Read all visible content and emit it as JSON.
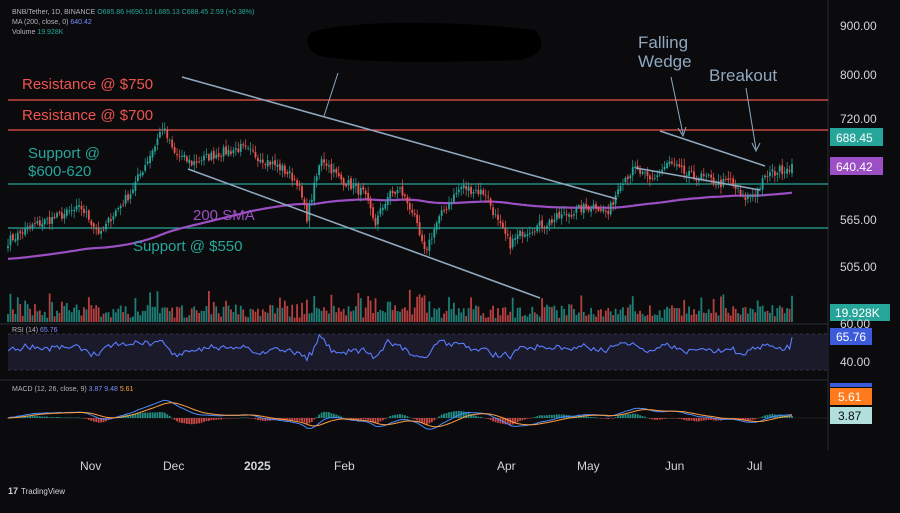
{
  "header": {
    "symbol": "BNB/Tether, 1D, BINANCE",
    "o": "O685.86",
    "h": "H690.10",
    "l": "L685.13",
    "c": "C688.45",
    "chg": "2.59 (+0.38%)",
    "ma_label": "MA (200, close, 0)",
    "ma_value": "640.42",
    "volume_label": "Volume",
    "volume_value": "19.928K"
  },
  "rsi_header": {
    "label": "RSI (14)",
    "value": "65.76"
  },
  "macd_header": {
    "label": "MACD (12, 26, close, 9)",
    "v1": "3.87",
    "v2": "9.48",
    "v3": "5.61"
  },
  "annotations": {
    "res750": "Resistance @ $750",
    "res700": "Resistance @ $700",
    "support600_l1": "Support @",
    "support600_l2": "$600-620",
    "sma": "200 SMA",
    "support550": "Support @ $550",
    "wedge_l1": "Falling",
    "wedge_l2": "Wedge",
    "breakout": "Breakout"
  },
  "price_axis": {
    "ticks": [
      "900.00",
      "800.00",
      "720.00",
      "565.00",
      "505.00"
    ],
    "last_price": "688.45",
    "ma_badge": "640.42",
    "volume_badge": "19.928K"
  },
  "rsi_axis": {
    "ticks": [
      "60.00",
      "40.00"
    ],
    "badge": "65.76"
  },
  "macd_axis": {
    "badge1": "5.61",
    "badge2": "3.87"
  },
  "time_axis": [
    "Nov",
    "Dec",
    "2025",
    "Feb",
    "Apr",
    "May",
    "Jun",
    "Jul"
  ],
  "branding": "TradingView",
  "colors": {
    "up": "#26a69a",
    "down": "#ef5350",
    "resistance": "#ef5350",
    "support": "#26a69a",
    "sma": "#9c4fc4",
    "trend": "#8fa8c0",
    "rsi": "#5b7cff",
    "macd": "#4a8cff",
    "signal": "#ff9f43"
  },
  "chart_data": {
    "type": "candlestick",
    "symbol": "BNB/Tether",
    "interval": "1D",
    "price_range": [
      470,
      920
    ],
    "last_close": 688.45,
    "ma200_last": 640.42,
    "levels": [
      {
        "label": "Resistance @ $750",
        "price": 750
      },
      {
        "label": "Resistance @ $700",
        "price": 700
      },
      {
        "label": "Support @ $600-620",
        "price": 610
      },
      {
        "label": "Support @ $550",
        "price": 550
      }
    ],
    "x_labels": [
      "Nov",
      "Dec",
      "2025",
      "Feb",
      "Apr",
      "May",
      "Jun",
      "Jul"
    ],
    "close_anchors": [
      [
        0,
        560
      ],
      [
        10,
        585
      ],
      [
        20,
        600
      ],
      [
        30,
        615
      ],
      [
        38,
        570
      ],
      [
        42,
        600
      ],
      [
        50,
        640
      ],
      [
        55,
        680
      ],
      [
        60,
        720
      ],
      [
        63,
        750
      ],
      [
        68,
        705
      ],
      [
        75,
        690
      ],
      [
        85,
        705
      ],
      [
        95,
        715
      ],
      [
        105,
        695
      ],
      [
        112,
        680
      ],
      [
        118,
        660
      ],
      [
        122,
        600
      ],
      [
        128,
        700
      ],
      [
        135,
        665
      ],
      [
        145,
        640
      ],
      [
        150,
        590
      ],
      [
        155,
        635
      ],
      [
        160,
        645
      ],
      [
        165,
        610
      ],
      [
        170,
        540
      ],
      [
        175,
        590
      ],
      [
        180,
        625
      ],
      [
        185,
        650
      ],
      [
        195,
        640
      ],
      [
        200,
        590
      ],
      [
        205,
        555
      ],
      [
        210,
        575
      ],
      [
        220,
        590
      ],
      [
        225,
        600
      ],
      [
        235,
        615
      ],
      [
        240,
        620
      ],
      [
        245,
        605
      ],
      [
        250,
        660
      ],
      [
        256,
        680
      ],
      [
        262,
        660
      ],
      [
        270,
        690
      ],
      [
        277,
        670
      ],
      [
        285,
        665
      ],
      [
        290,
        655
      ],
      [
        295,
        660
      ],
      [
        300,
        630
      ],
      [
        305,
        640
      ],
      [
        310,
        670
      ],
      [
        315,
        678
      ],
      [
        320,
        685
      ]
    ],
    "rsi": {
      "range": [
        20,
        80
      ],
      "last": 65.76
    },
    "macd": {
      "macd": 3.87,
      "signal": 5.61,
      "histogram": 9.48
    }
  }
}
